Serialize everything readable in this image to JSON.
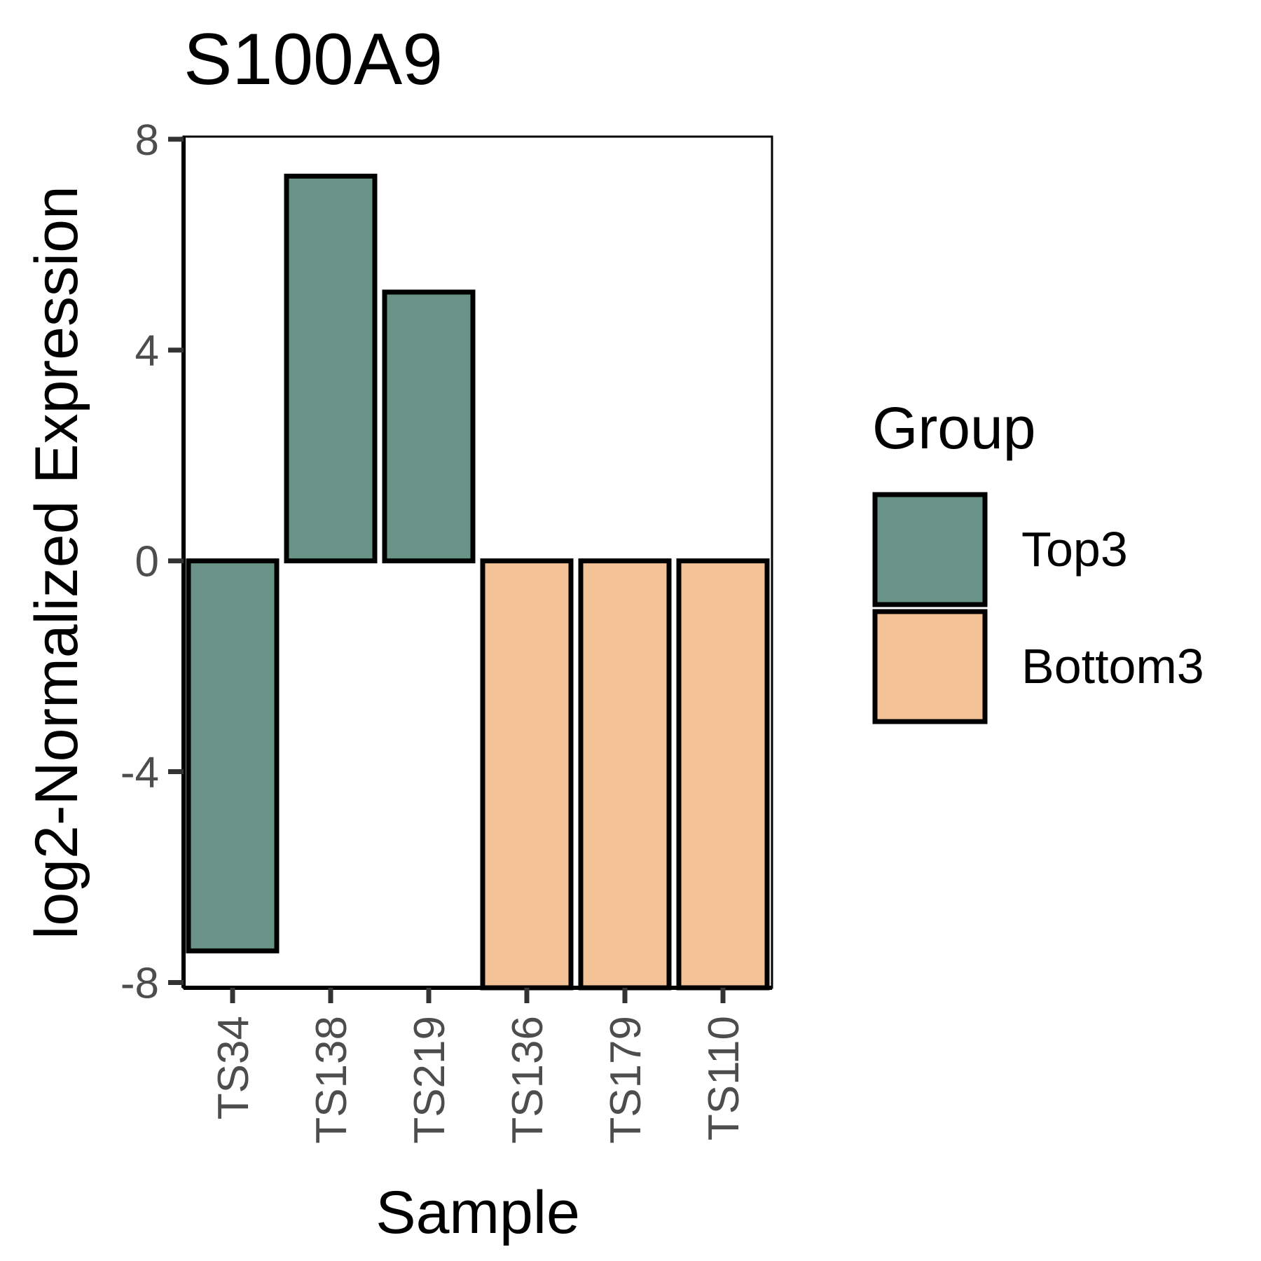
{
  "chart_data": {
    "type": "bar",
    "title": "S100A9",
    "xlabel": "Sample",
    "ylabel": "log2-Normalized Expression",
    "categories": [
      "TS34",
      "TS138",
      "TS219",
      "TS136",
      "TS179",
      "TS110"
    ],
    "values": [
      -7.4,
      7.3,
      5.1,
      -8.1,
      -8.1,
      -8.1
    ],
    "groups": [
      "Top3",
      "Top3",
      "Top3",
      "Bottom3",
      "Bottom3",
      "Bottom3"
    ],
    "ylim": [
      -8.1,
      8.05
    ],
    "yticks": [
      -8,
      -4,
      0,
      4,
      8
    ],
    "ytick_labels": [
      "-8",
      "-4",
      "0",
      "4",
      "8"
    ],
    "grid": false,
    "legend": {
      "title": "Group",
      "position": "right",
      "items": [
        {
          "label": "Top3",
          "color": "#6a9388"
        },
        {
          "label": "Bottom3",
          "color": "#f3c297"
        }
      ]
    }
  }
}
